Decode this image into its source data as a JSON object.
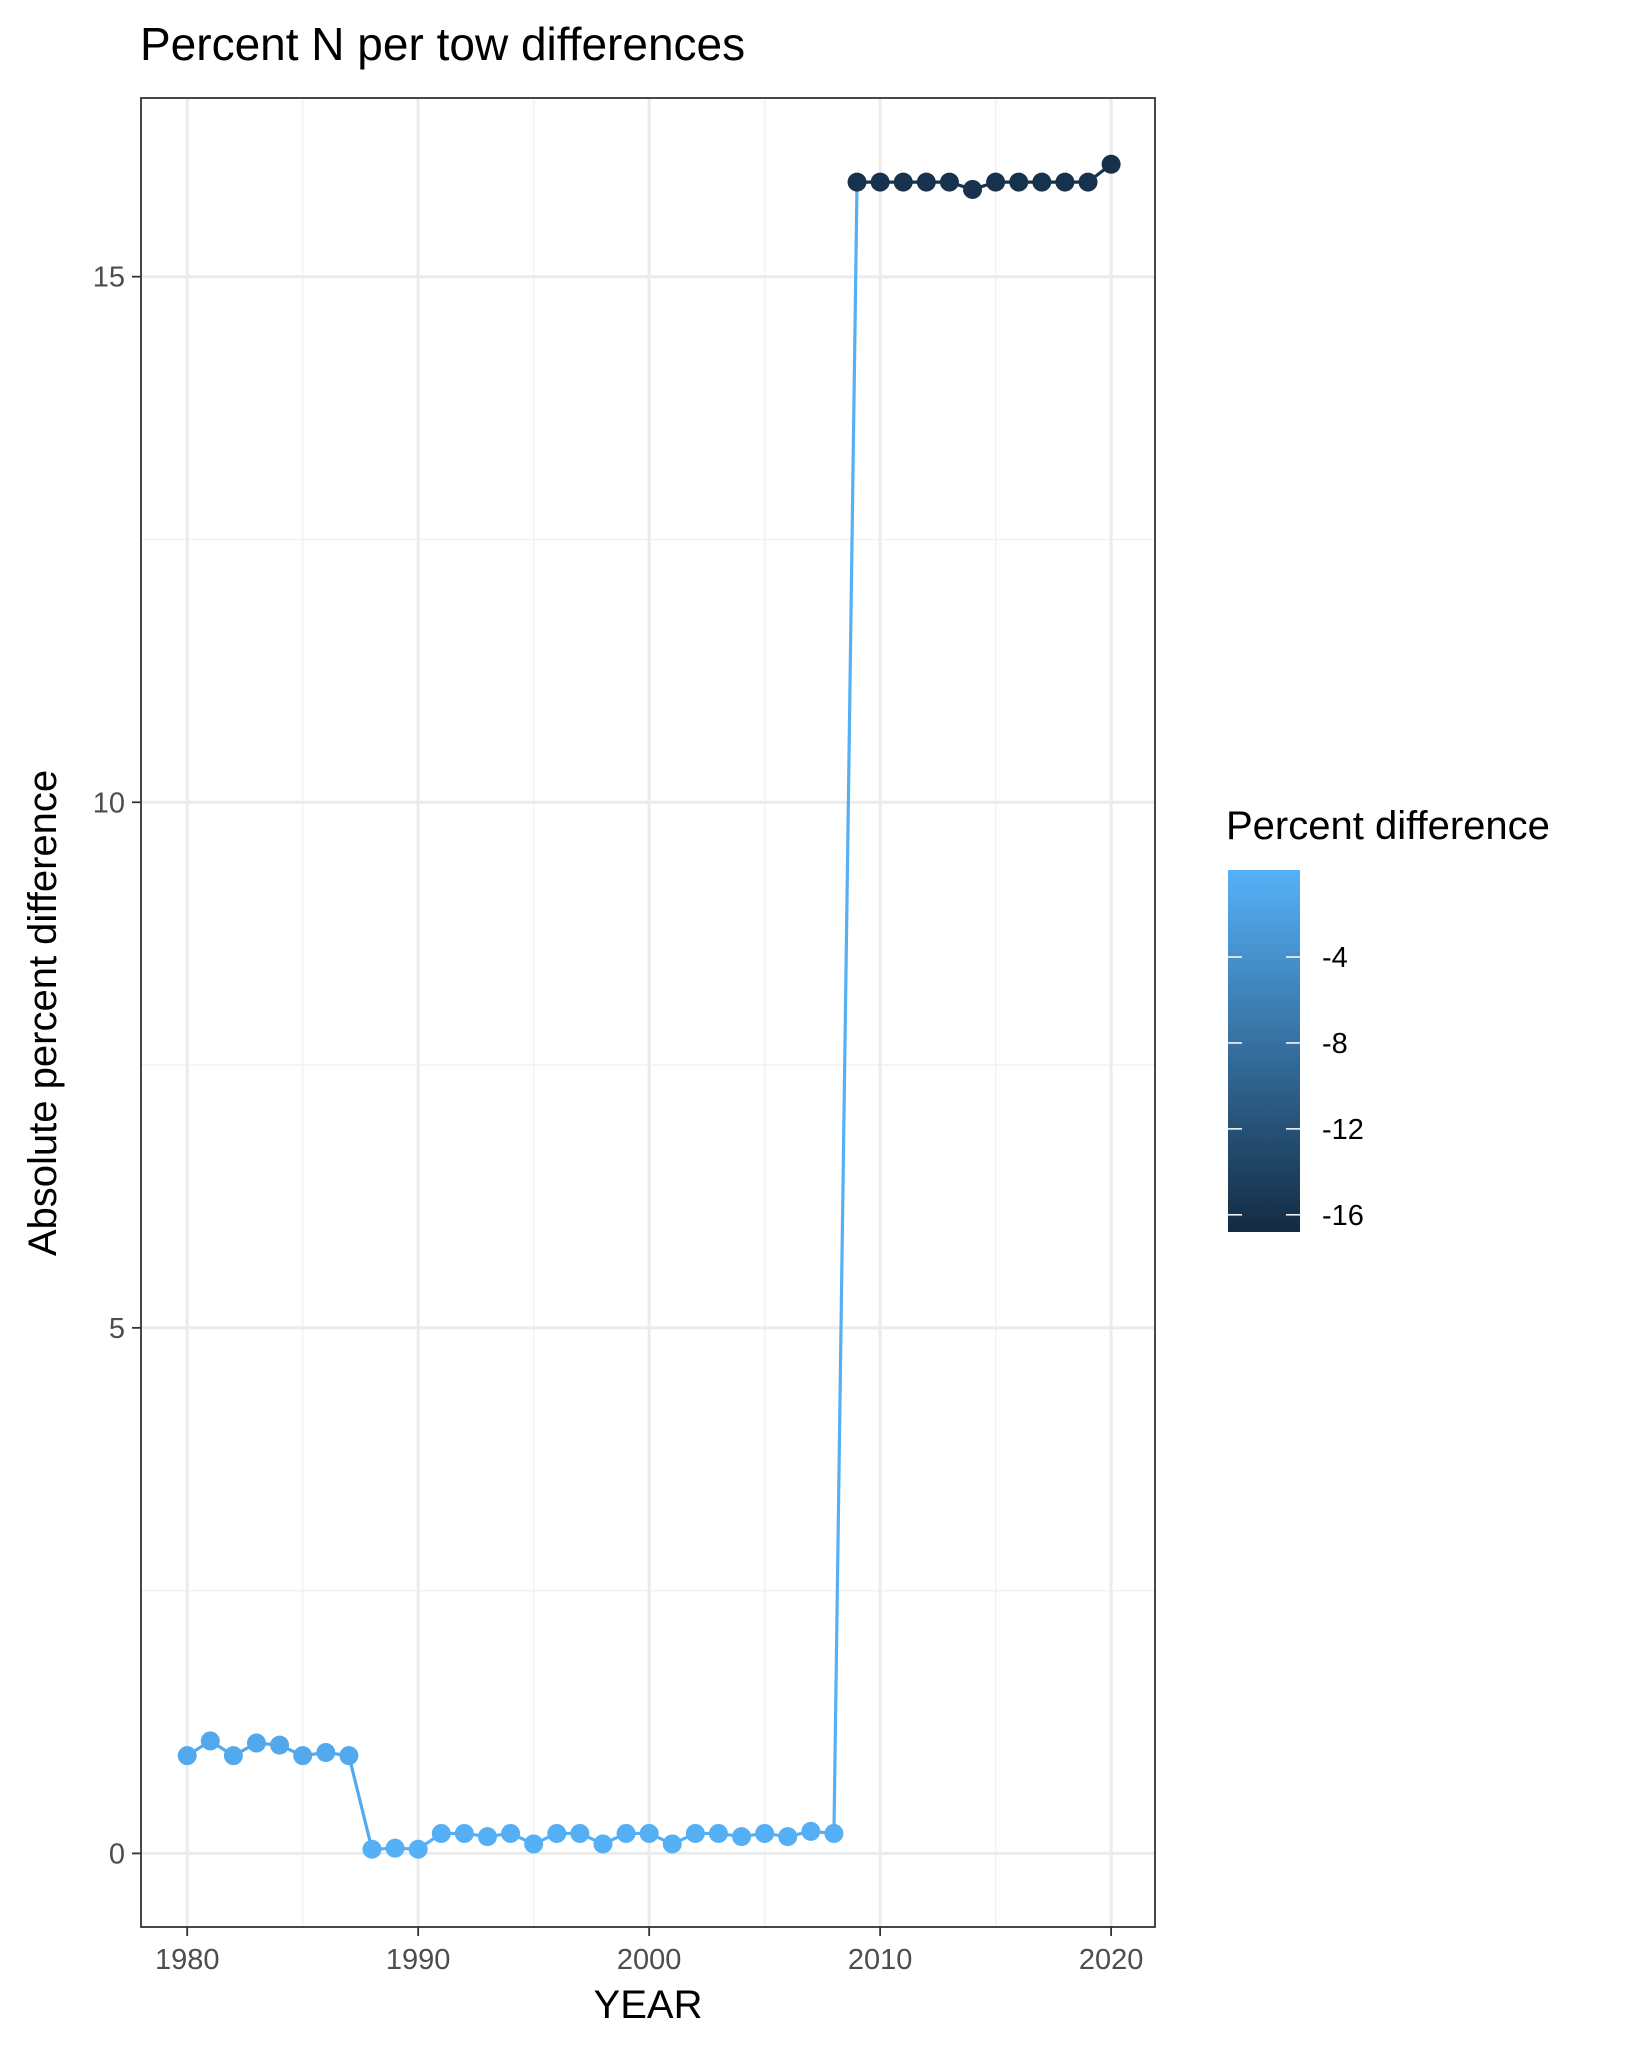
{
  "chart_data": {
    "type": "line",
    "title": "Percent N per tow differences",
    "xlabel": "YEAR",
    "ylabel": "Absolute percent difference",
    "xlim": [
      1978,
      2021.9
    ],
    "ylim": [
      -0.7,
      16.7
    ],
    "x_ticks": [
      1980,
      1990,
      2000,
      2010,
      2020
    ],
    "y_ticks": [
      0,
      5,
      10,
      15
    ],
    "grid": true,
    "legend": {
      "title": "Percent difference",
      "placement": "right",
      "type": "colorbar",
      "range": [
        -16.8,
        0.05
      ],
      "ticks": [
        -4,
        -8,
        -12,
        -16
      ],
      "color_low": "#132b43",
      "color_high": "#56b1f7"
    },
    "series": [
      {
        "x": [
          1980,
          1981,
          1982,
          1983,
          1984,
          1985,
          1986,
          1987,
          1988,
          1989,
          1990,
          1991,
          1992,
          1993,
          1994,
          1995,
          1996,
          1997,
          1998,
          1999,
          2000,
          2001,
          2002,
          2003,
          2004,
          2005,
          2006,
          2007,
          2008,
          2009,
          2010,
          2011,
          2012,
          2013,
          2014,
          2015,
          2016,
          2017,
          2018,
          2019,
          2020
        ],
        "y": [
          0.93,
          1.07,
          0.93,
          1.05,
          1.03,
          0.93,
          0.96,
          0.93,
          0.04,
          0.05,
          0.04,
          0.19,
          0.19,
          0.16,
          0.19,
          0.09,
          0.19,
          0.19,
          0.09,
          0.19,
          0.19,
          0.09,
          0.19,
          0.19,
          0.16,
          0.19,
          0.16,
          0.21,
          0.19,
          15.9,
          15.9,
          15.9,
          15.9,
          15.9,
          15.83,
          15.9,
          15.9,
          15.9,
          15.9,
          15.9,
          16.07
        ],
        "color_values": [
          -0.93,
          -1.07,
          -0.93,
          -1.05,
          -1.03,
          -0.93,
          -0.96,
          -0.93,
          -0.04,
          -0.05,
          -0.04,
          -0.19,
          -0.19,
          -0.16,
          -0.19,
          -0.09,
          -0.19,
          -0.19,
          -0.09,
          -0.19,
          -0.19,
          -0.09,
          -0.19,
          -0.19,
          -0.16,
          -0.19,
          -0.16,
          -0.21,
          -0.19,
          -15.9,
          -15.9,
          -15.9,
          -15.9,
          -15.9,
          -15.83,
          -15.9,
          -15.9,
          -15.9,
          -15.9,
          -15.9,
          -16.07
        ]
      }
    ]
  }
}
